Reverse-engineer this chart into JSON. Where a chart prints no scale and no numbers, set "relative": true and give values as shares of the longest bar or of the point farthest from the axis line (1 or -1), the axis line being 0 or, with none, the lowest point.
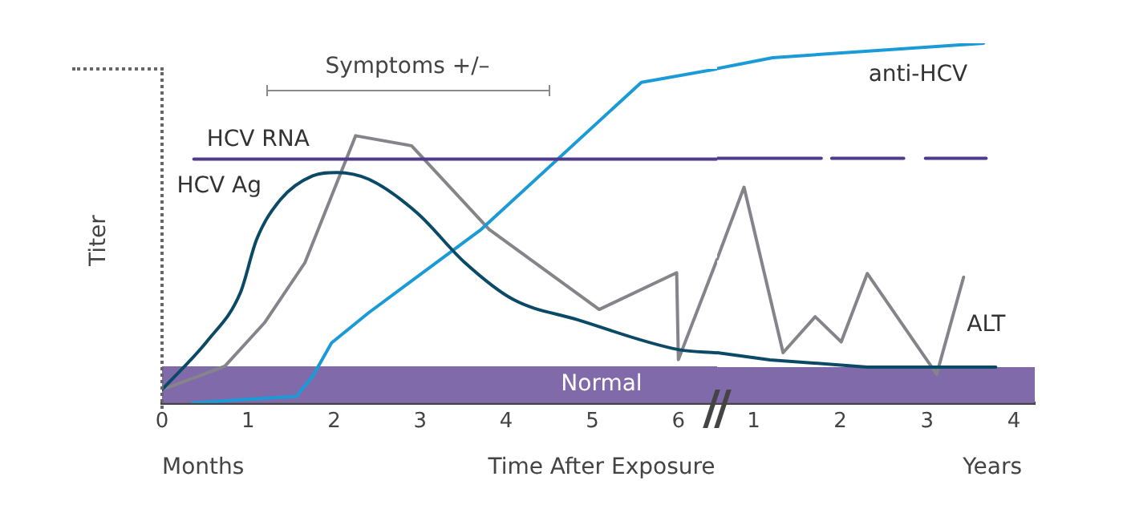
{
  "chart_data": [
    {
      "type": "line",
      "relative": true,
      "xlabel": "Time After Exposure",
      "ylabel": "Titer",
      "xlim": [
        0,
        6.45
      ],
      "xticks": [
        0,
        1,
        2,
        3,
        4,
        5,
        6
      ],
      "grid": false,
      "legend": false,
      "marker": "none",
      "line_style": "solid",
      "series": [
        {
          "name": "HCV RNA",
          "color": "#4f3a8c",
          "x": [
            0.37,
            6.45
          ],
          "values": [
            0.73,
            0.73
          ]
        },
        {
          "name": "HCV Ag",
          "color": "#0b4a66",
          "x": [
            0,
            0.54,
            0.91,
            1.1,
            1.38,
            1.75,
            2.03,
            2.4,
            2.96,
            3.52,
            4.08,
            4.82,
            6.0,
            6.45
          ],
          "values": [
            0.04,
            0.19,
            0.33,
            0.49,
            0.61,
            0.68,
            0.69,
            0.67,
            0.57,
            0.42,
            0.31,
            0.25,
            0.16,
            0.15
          ]
        },
        {
          "color": "#1a9ad6",
          "x": [
            0.35,
            0.91,
            1.56,
            1.75,
            1.97,
            2.4,
            3.71,
            5.57,
            6.45
          ],
          "values": [
            0,
            0.01,
            0.02,
            0.08,
            0.18,
            0.27,
            0.52,
            0.96,
            1
          ]
        },
        {
          "color": "#84848a",
          "x": [
            0,
            0.73,
            1.19,
            1.66,
            2.25,
            2.9,
            3.8,
            5.08,
            5.98,
            6.0,
            6.45
          ],
          "values": [
            0.04,
            0.11,
            0.24,
            0.42,
            0.8,
            0.77,
            0.52,
            0.28,
            0.39,
            0.13,
            0.43
          ]
        }
      ],
      "bands": [
        {
          "axis": "y",
          "from": 0,
          "to": 0.11,
          "label": "Normal",
          "color": "#806aaa"
        }
      ],
      "annotations": [
        "Symptoms +/–",
        "Months"
      ]
    },
    {
      "type": "line",
      "relative": true,
      "xlim": [
        0.58,
        4.24
      ],
      "xticks": [
        1,
        2,
        3,
        4
      ],
      "grid": false,
      "legend": false,
      "marker": "none",
      "line_style": "solid",
      "series": [
        {
          "color": "#4f3a8c",
          "x": [
            0.58,
            1.78,
            1.79,
            1.9,
            2.73,
            2.74,
            2.98,
            3.68
          ],
          "values": [
            0.68,
            0.68,
            null,
            0.68,
            0.68,
            null,
            0.68,
            0.68
          ]
        },
        {
          "color": "#0b4a66",
          "x": [
            0.58,
            1.19,
            2.31,
            3.79
          ],
          "values": [
            0.14,
            0.12,
            0.1,
            0.1
          ]
        },
        {
          "name": "anti-HCV",
          "color": "#1a9ad6",
          "x": [
            0.58,
            1.22,
            3.65
          ],
          "values": [
            0.93,
            0.96,
            1
          ]
        },
        {
          "name": "ALT",
          "color": "#84848a",
          "x": [
            0.58,
            0.89,
            1.34,
            1.71,
            2.01,
            2.31,
            3.11,
            3.42
          ],
          "values": [
            0.4,
            0.6,
            0.14,
            0.24,
            0.17,
            0.36,
            0.08,
            0.35
          ]
        }
      ],
      "bands": [
        {
          "axis": "y",
          "from": 0,
          "to": 0.1,
          "color": "#806aaa"
        }
      ],
      "annotations": [
        "Years"
      ]
    }
  ]
}
